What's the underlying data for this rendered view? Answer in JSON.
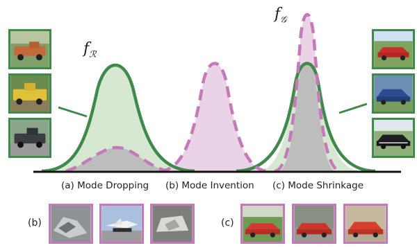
{
  "labels": {
    "f_real_main": "f",
    "f_real_sub": "ℛ",
    "f_gen_main": "f",
    "f_gen_sub": "𝒢"
  },
  "captions": {
    "a": "(a) Mode Dropping",
    "b": "(b) Mode Invention",
    "c": "(c) Mode Shrinkage"
  },
  "row_labels": {
    "b": "(b)",
    "c": "(c)"
  },
  "colors": {
    "real": "#3f8a4a",
    "real_fill": "#d7e8d2",
    "gen": "#c47ab9",
    "gen_fill": "#ead3e6",
    "overlap": "#bdbdbd",
    "axis": "#111111"
  },
  "thumbnails": {
    "left_trucks": [
      "orange-pickup-truck",
      "yellow-pickup-truck",
      "dark-pickup-truck"
    ],
    "right_cars": [
      "red-convertible-car",
      "blue-classic-car",
      "black-classic-car"
    ],
    "bottom_b": [
      "wrecked-object-image",
      "space-shuttle-image",
      "damaged-vehicle-image"
    ],
    "bottom_c": [
      "red-muscle-car",
      "red-convertible-car",
      "red-sports-car"
    ]
  }
}
